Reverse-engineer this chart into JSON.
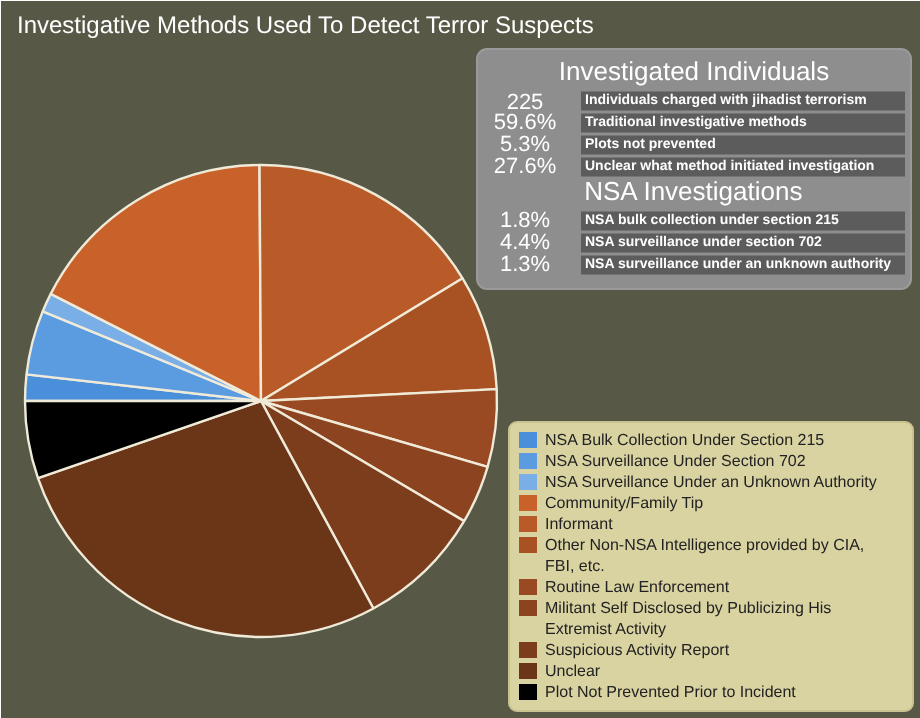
{
  "chart_data": {
    "type": "pie",
    "title": "Investigative Methods Used To Detect Terror Suspects",
    "categories": [
      "NSA Bulk Collection Under Section 215",
      "NSA Surveillance Under Section 702",
      "NSA Surveillance Under an Unknown Authority",
      "Community/Family Tip",
      "Informant",
      "Other Non-NSA Intelligence provided by CIA, FBI, etc.",
      "Routine Law Enforcement",
      "Militant Self Disclosed by Publicizing His Extremist Activity",
      "Suspicious Activity Report",
      "Unclear",
      "Plot Not Prevented Prior to Incident"
    ],
    "values": [
      1.8,
      4.4,
      1.3,
      17.4,
      16.4,
      7.9,
      5.3,
      4.0,
      8.6,
      27.6,
      5.3
    ],
    "colors": [
      "#4a8fd9",
      "#5b9be0",
      "#7aaee6",
      "#c8622a",
      "#b95b28",
      "#a85224",
      "#9a4a22",
      "#8c4420",
      "#7b3d1c",
      "#6b3518",
      "#000000"
    ],
    "annotations": [
      "Investigated Individuals",
      "225",
      "Individuals charged with jihadist terrorism",
      "59.6%",
      "Traditional investigative methods",
      "5.3%",
      "Plots not prevented",
      "27.6%",
      "Unclear what method initiated investigation",
      "NSA Investigations",
      "1.8%",
      "NSA bulk collection under section 215",
      "4.4%",
      "NSA surveillance under section 702",
      "1.3%",
      "NSA surveillance under an unknown authority"
    ],
    "legend": "bottom right"
  }
}
